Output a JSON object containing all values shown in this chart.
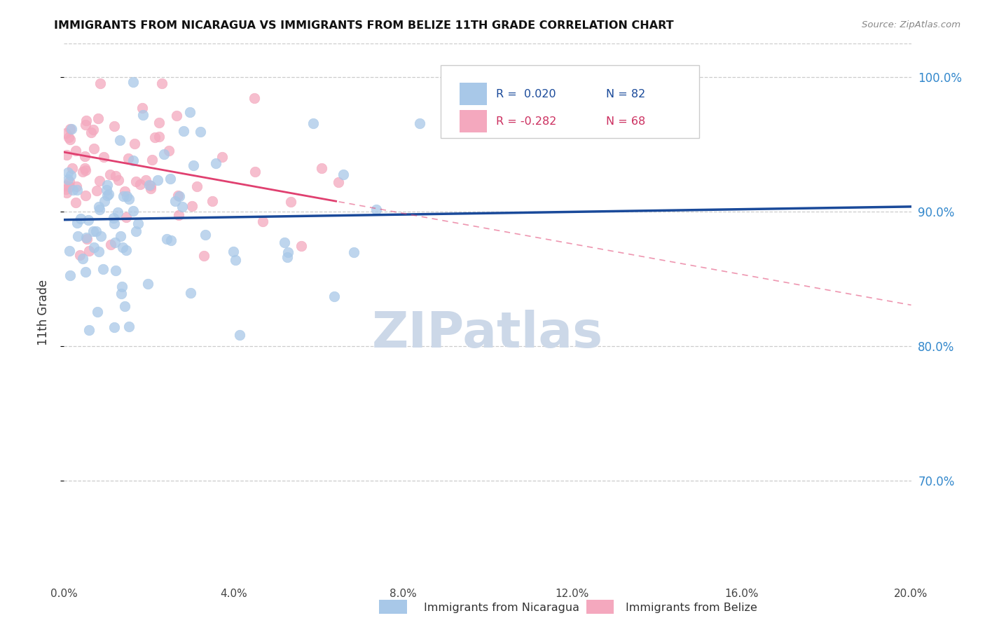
{
  "title": "IMMIGRANTS FROM NICARAGUA VS IMMIGRANTS FROM BELIZE 11TH GRADE CORRELATION CHART",
  "source": "Source: ZipAtlas.com",
  "ylabel": "11th Grade",
  "R_nicaragua": 0.02,
  "N_nicaragua": 82,
  "R_belize": -0.282,
  "N_belize": 68,
  "color_nicaragua": "#a8c8e8",
  "color_belize": "#f4a8be",
  "line_color_nicaragua": "#1a4a9a",
  "line_color_belize": "#e04070",
  "watermark_color": "#ccd8e8",
  "background_color": "#ffffff",
  "grid_color": "#cccccc",
  "xlim": [
    0.0,
    0.2
  ],
  "ylim": [
    0.625,
    1.025
  ],
  "y_ticks": [
    0.7,
    0.8,
    0.9,
    1.0
  ],
  "x_ticks": [
    0.0,
    0.04,
    0.08,
    0.12,
    0.16,
    0.2
  ],
  "right_tick_color": "#3388cc",
  "legend_R_color_blue": "#1a4a9a",
  "legend_R_color_pink": "#cc3060",
  "legend_N_color_blue": "#1a4a9a",
  "legend_N_color_pink": "#cc3060"
}
